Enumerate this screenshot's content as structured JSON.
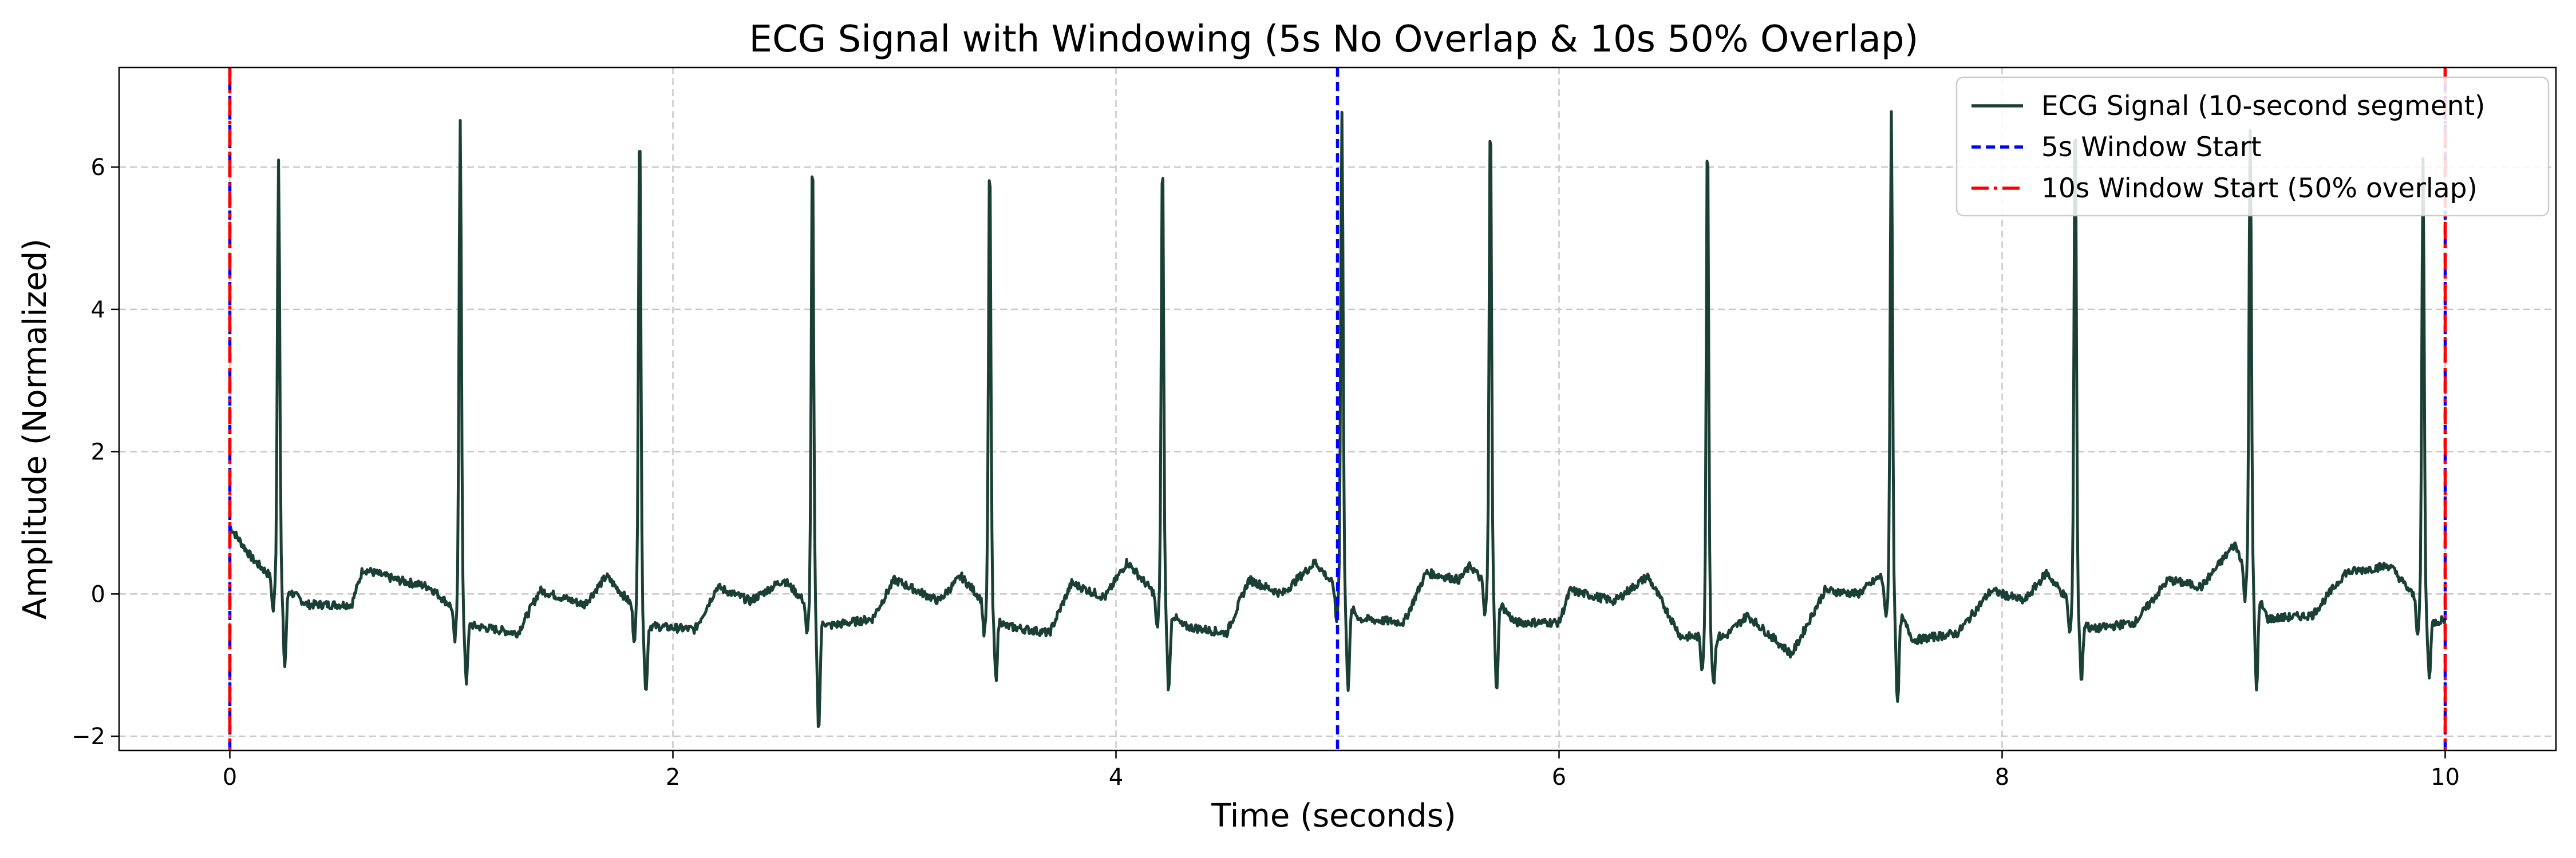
{
  "chart_data": {
    "type": "line",
    "title": "ECG Signal with Windowing (5s No Overlap & 10s 50% Overlap)",
    "xlabel": "Time (seconds)",
    "ylabel": "Amplitude (Normalized)",
    "xlim": [
      -0.5,
      10.5
    ],
    "ylim": [
      -2.2,
      7.4
    ],
    "xticks": [
      0,
      2,
      4,
      6,
      8,
      10
    ],
    "yticks": [
      -2,
      0,
      2,
      4,
      6
    ],
    "x_tick_labels": [
      "0",
      "2",
      "4",
      "6",
      "8",
      "10"
    ],
    "y_tick_labels": [
      "−2",
      "0",
      "2",
      "4",
      "6"
    ],
    "grid": true,
    "legend_position": "top-right",
    "series": [
      {
        "name": "ECG Signal (10-second segment)",
        "color": "#1a3f34",
        "style": "solid",
        "beats": [
          {
            "t": 0.22,
            "peak": 6.15,
            "trough": -0.95
          },
          {
            "t": 1.04,
            "peak": 6.7,
            "trough": -1.15
          },
          {
            "t": 1.85,
            "peak": 6.75,
            "trough": -1.3
          },
          {
            "t": 2.63,
            "peak": 6.25,
            "trough": -1.8
          },
          {
            "t": 3.43,
            "peak": 6.2,
            "trough": -1.1
          },
          {
            "t": 4.21,
            "peak": 6.25,
            "trough": -1.25
          },
          {
            "t": 5.02,
            "peak": 6.75,
            "trough": -1.2
          },
          {
            "t": 5.69,
            "peak": 6.85,
            "trough": -1.3
          },
          {
            "t": 6.67,
            "peak": 6.55,
            "trough": -1.25
          },
          {
            "t": 7.5,
            "peak": 6.75,
            "trough": -1.4
          },
          {
            "t": 8.33,
            "peak": 6.9,
            "trough": -1.1
          },
          {
            "t": 9.12,
            "peak": 6.55,
            "trough": -1.15
          },
          {
            "t": 9.9,
            "peak": 6.1,
            "trough": -1.05
          }
        ],
        "baseline": [
          [
            0.0,
            0.95
          ],
          [
            0.1,
            0.5
          ],
          [
            0.2,
            0.2
          ],
          [
            0.35,
            -0.15
          ],
          [
            0.55,
            -0.15
          ],
          [
            0.6,
            0.35
          ],
          [
            0.75,
            0.2
          ],
          [
            0.9,
            0.1
          ],
          [
            1.1,
            -0.45
          ],
          [
            1.3,
            -0.55
          ],
          [
            1.4,
            0.05
          ],
          [
            1.6,
            -0.15
          ],
          [
            1.7,
            0.25
          ],
          [
            1.9,
            -0.45
          ],
          [
            2.1,
            -0.5
          ],
          [
            2.2,
            0.1
          ],
          [
            2.35,
            -0.1
          ],
          [
            2.5,
            0.2
          ],
          [
            2.7,
            -0.45
          ],
          [
            2.9,
            -0.35
          ],
          [
            3.0,
            0.2
          ],
          [
            3.2,
            -0.1
          ],
          [
            3.3,
            0.25
          ],
          [
            3.5,
            -0.45
          ],
          [
            3.7,
            -0.55
          ],
          [
            3.8,
            0.15
          ],
          [
            3.95,
            -0.05
          ],
          [
            4.05,
            0.45
          ],
          [
            4.3,
            -0.45
          ],
          [
            4.5,
            -0.55
          ],
          [
            4.6,
            0.2
          ],
          [
            4.75,
            0.0
          ],
          [
            4.9,
            0.45
          ],
          [
            5.1,
            -0.35
          ],
          [
            5.3,
            -0.4
          ],
          [
            5.4,
            0.3
          ],
          [
            5.55,
            0.2
          ],
          [
            5.6,
            0.4
          ],
          [
            5.8,
            -0.4
          ],
          [
            6.0,
            -0.4
          ],
          [
            6.05,
            0.05
          ],
          [
            6.25,
            -0.1
          ],
          [
            6.4,
            0.25
          ],
          [
            6.55,
            -0.6
          ],
          [
            6.75,
            -0.6
          ],
          [
            6.85,
            -0.3
          ],
          [
            7.05,
            -0.85
          ],
          [
            7.2,
            0.05
          ],
          [
            7.35,
            0.0
          ],
          [
            7.45,
            0.25
          ],
          [
            7.6,
            -0.65
          ],
          [
            7.8,
            -0.55
          ],
          [
            7.95,
            0.05
          ],
          [
            8.1,
            -0.1
          ],
          [
            8.2,
            0.3
          ],
          [
            8.4,
            -0.5
          ],
          [
            8.6,
            -0.4
          ],
          [
            8.75,
            0.2
          ],
          [
            8.9,
            0.1
          ],
          [
            9.05,
            0.7
          ],
          [
            9.2,
            -0.35
          ],
          [
            9.4,
            -0.3
          ],
          [
            9.55,
            0.3
          ],
          [
            9.75,
            0.4
          ],
          [
            9.95,
            -0.4
          ],
          [
            10.0,
            -0.35
          ]
        ]
      },
      {
        "name": "5s Window Start",
        "color": "#0000ff",
        "style": "dashed",
        "x": [
          0,
          5,
          10
        ]
      },
      {
        "name": "10s Window Start (50% overlap)",
        "color": "#ff0000",
        "style": "dashdot",
        "x": [
          0,
          10
        ]
      }
    ]
  }
}
